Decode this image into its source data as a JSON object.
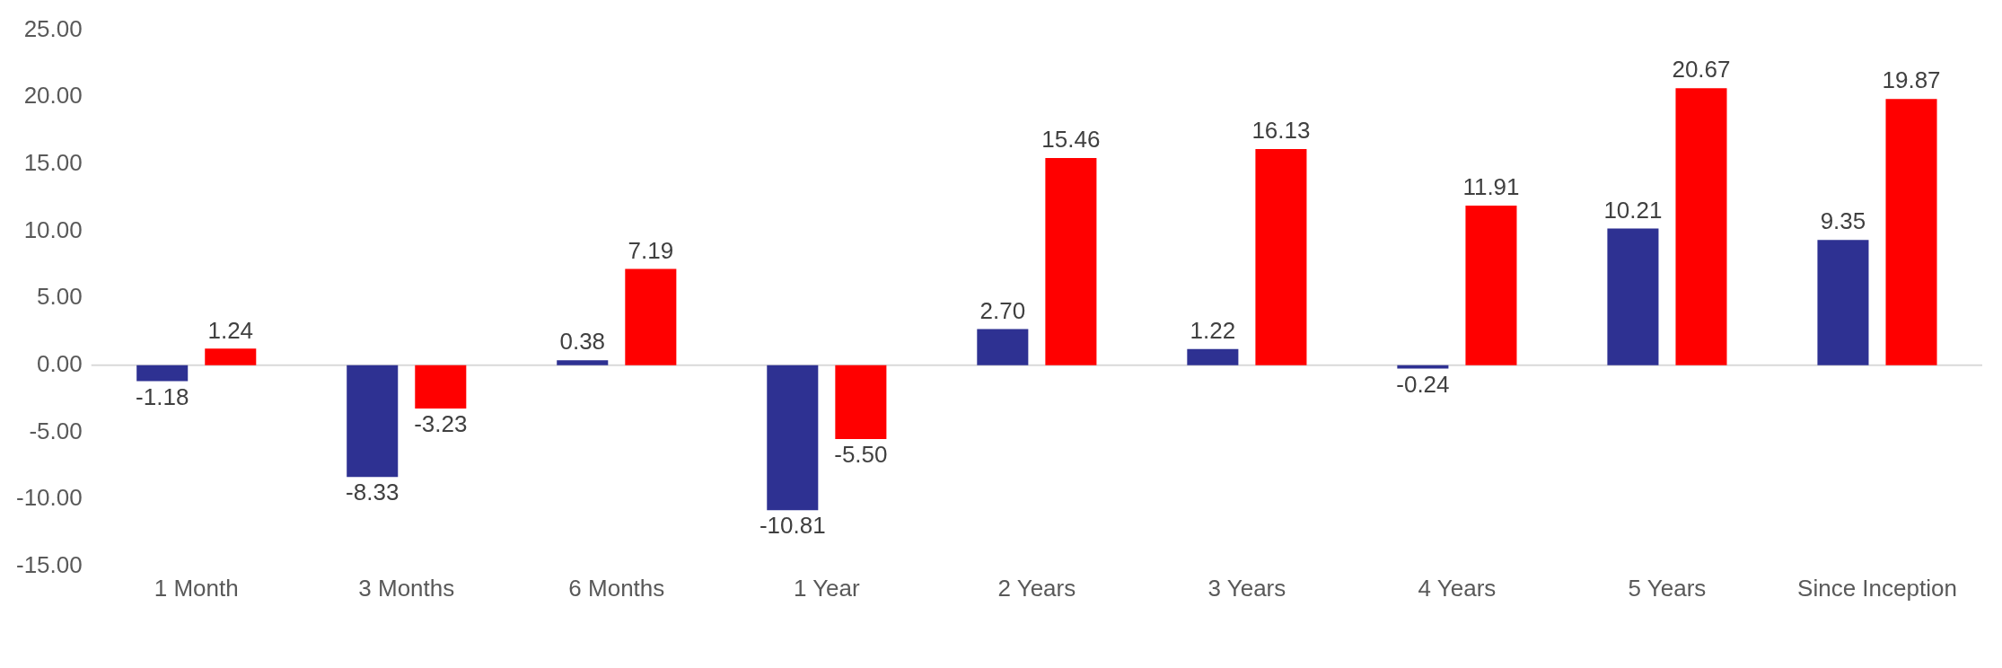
{
  "chart_data": {
    "type": "bar",
    "categories": [
      "1 Month",
      "3 Months",
      "6 Months",
      "1 Year",
      "2 Years",
      "3 Years",
      "4 Years",
      "5 Years",
      "Since Inception"
    ],
    "series": [
      {
        "color": "#2e3192",
        "values": [
          -1.18,
          -8.33,
          0.38,
          -10.81,
          2.7,
          1.22,
          -0.24,
          10.21,
          9.35
        ],
        "value_labels": [
          "-1.18",
          "-8.33",
          "0.38",
          "-10.81",
          "2.70",
          "1.22",
          "-0.24",
          "10.21",
          "9.35"
        ]
      },
      {
        "color": "#ff0000",
        "values": [
          1.24,
          -3.23,
          7.19,
          -5.5,
          15.46,
          16.13,
          11.91,
          20.67,
          19.87
        ],
        "value_labels": [
          "1.24",
          "-3.23",
          "7.19",
          "-5.50",
          "15.46",
          "16.13",
          "11.91",
          "20.67",
          "19.87"
        ]
      }
    ],
    "ylim": [
      -15,
      25
    ],
    "yticks": [
      {
        "value": -15,
        "label": "-15.00"
      },
      {
        "value": -10,
        "label": "-10.00"
      },
      {
        "value": -5,
        "label": "-5.00"
      },
      {
        "value": 0,
        "label": "0.00"
      },
      {
        "value": 5,
        "label": "5.00"
      },
      {
        "value": 10,
        "label": "10.00"
      },
      {
        "value": 15,
        "label": "15.00"
      },
      {
        "value": 20,
        "label": "20.00"
      },
      {
        "value": 25,
        "label": "25.00"
      }
    ],
    "legend": false
  }
}
